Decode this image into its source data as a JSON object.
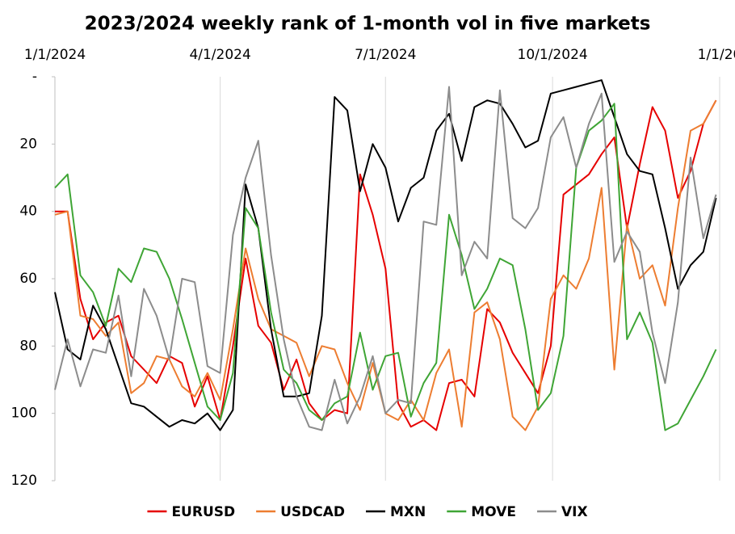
{
  "chart_data": {
    "type": "line",
    "title": "2023/2024 weekly rank of 1-month vol in five markets",
    "x": [
      "2024-01-01",
      "2024-01-08",
      "2024-01-15",
      "2024-01-22",
      "2024-01-29",
      "2024-02-05",
      "2024-02-12",
      "2024-02-19",
      "2024-02-26",
      "2024-03-04",
      "2024-03-11",
      "2024-03-18",
      "2024-03-25",
      "2024-04-01",
      "2024-04-08",
      "2024-04-15",
      "2024-04-22",
      "2024-04-29",
      "2024-05-06",
      "2024-05-13",
      "2024-05-20",
      "2024-05-27",
      "2024-06-03",
      "2024-06-10",
      "2024-06-17",
      "2024-06-24",
      "2024-07-01",
      "2024-07-08",
      "2024-07-15",
      "2024-07-22",
      "2024-07-29",
      "2024-08-05",
      "2024-08-12",
      "2024-08-19",
      "2024-08-26",
      "2024-09-02",
      "2024-09-09",
      "2024-09-16",
      "2024-09-23",
      "2024-09-30",
      "2024-10-07",
      "2024-10-14",
      "2024-10-21",
      "2024-10-28",
      "2024-11-04",
      "2024-11-11",
      "2024-11-18",
      "2024-11-25",
      "2024-12-02",
      "2024-12-09",
      "2024-12-16",
      "2024-12-23",
      "2024-12-30"
    ],
    "series": [
      {
        "name": "EURUSD",
        "color": "#e60000",
        "values": [
          40,
          40,
          66,
          78,
          73,
          71,
          83,
          87,
          91,
          83,
          85,
          98,
          89,
          102,
          80,
          54,
          74,
          79,
          93,
          84,
          97,
          102,
          99,
          100,
          29,
          41,
          57,
          97,
          104,
          102,
          105,
          91,
          90,
          95,
          69,
          73,
          82,
          88,
          94,
          80,
          35,
          32,
          29,
          23,
          18,
          45,
          26,
          9,
          16,
          36,
          28,
          14,
          7
        ]
      },
      {
        "name": "USDCAD",
        "color": "#ed7d31",
        "values": [
          41,
          40,
          71,
          72,
          77,
          73,
          94,
          91,
          83,
          84,
          92,
          95,
          88,
          96,
          75,
          51,
          66,
          75,
          77,
          79,
          89,
          80,
          81,
          91,
          99,
          85,
          100,
          102,
          96,
          102,
          88,
          81,
          104,
          70,
          67,
          78,
          101,
          105,
          98,
          66,
          59,
          63,
          54,
          33,
          87,
          44,
          60,
          56,
          68,
          39,
          16,
          14,
          7
        ]
      },
      {
        "name": "MXN",
        "color": "#000000",
        "values": [
          64,
          81,
          84,
          68,
          75,
          86,
          97,
          98,
          101,
          104,
          102,
          103,
          100,
          105,
          99,
          32,
          45,
          75,
          95,
          95,
          94,
          71,
          6,
          10,
          34,
          20,
          27,
          43,
          33,
          30,
          16,
          11,
          25,
          9,
          7,
          8,
          14,
          21,
          19,
          5,
          4,
          3,
          2,
          1,
          12,
          23,
          28,
          29,
          45,
          63,
          56,
          52,
          36
        ]
      },
      {
        "name": "MOVE",
        "color": "#3fa535",
        "values": [
          33,
          29,
          59,
          64,
          74,
          57,
          61,
          51,
          52,
          60,
          72,
          85,
          98,
          102,
          88,
          39,
          45,
          70,
          87,
          91,
          99,
          102,
          97,
          95,
          76,
          93,
          83,
          82,
          101,
          91,
          85,
          41,
          53,
          69,
          63,
          54,
          56,
          75,
          99,
          94,
          77,
          27,
          16,
          13,
          8,
          78,
          70,
          79,
          105,
          103,
          96,
          89,
          81
        ]
      },
      {
        "name": "VIX",
        "color": "#8c8c8c",
        "values": [
          93,
          78,
          92,
          81,
          82,
          65,
          89,
          63,
          71,
          84,
          60,
          61,
          86,
          88,
          47,
          30,
          19,
          53,
          78,
          95,
          104,
          105,
          90,
          103,
          95,
          83,
          100,
          96,
          97,
          43,
          44,
          3,
          59,
          49,
          54,
          4,
          42,
          45,
          39,
          18,
          12,
          27,
          14,
          5,
          55,
          46,
          52,
          76,
          91,
          67,
          24,
          48,
          35
        ]
      }
    ],
    "xlim": [
      "2024-01-01",
      "2025-01-01"
    ],
    "xticks": [
      {
        "value": "2024-01-01",
        "label": "1/1/2024"
      },
      {
        "value": "2024-04-01",
        "label": "4/1/2024"
      },
      {
        "value": "2024-07-01",
        "label": "7/1/2024"
      },
      {
        "value": "2024-10-01",
        "label": "10/1/2024"
      },
      {
        "value": "2025-01-01",
        "label": "1/1/20"
      }
    ],
    "ylim": [
      0,
      120
    ],
    "yticks": [
      {
        "value": 0,
        "label": "-"
      },
      20,
      40,
      60,
      80,
      100,
      120
    ],
    "y_inverted": true,
    "grid": true,
    "legend": "bottom"
  }
}
